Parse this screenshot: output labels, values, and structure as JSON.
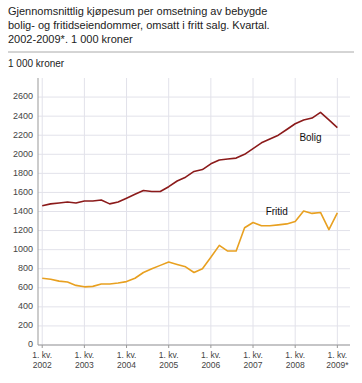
{
  "chart_data": {
    "type": "line",
    "title": "Gjennomsnittlig kjøpesum per omsetning av bebygde\nbolig- og fritidseiendommer, omsatt i fritt salg. Kvartal.\n2002-2009*. 1 000 kroner",
    "y_label": "1 000 kroner",
    "categories": [
      "1. kv.\n2002",
      null,
      null,
      null,
      null,
      "1. kv.\n2003",
      null,
      null,
      null,
      null,
      "1. kv.\n2004",
      null,
      null,
      null,
      null,
      "1. kv.\n2005",
      null,
      null,
      null,
      null,
      "1. kv.\n2006",
      null,
      null,
      null,
      null,
      "1. kv.\n2007",
      null,
      null,
      null,
      null,
      "1. kv.\n2008",
      null,
      null,
      null,
      null,
      "1. kv.\n2009*"
    ],
    "series": [
      {
        "name": "Bolig",
        "color": "#8B1A1A",
        "values": [
          1460,
          1480,
          1490,
          1500,
          1490,
          1510,
          1510,
          1520,
          1480,
          1500,
          1540,
          1580,
          1620,
          1610,
          1610,
          1660,
          1720,
          1760,
          1820,
          1840,
          1900,
          1940,
          1950,
          1960,
          2000,
          2060,
          2120,
          2160,
          2200,
          2260,
          2320,
          2360,
          2380,
          2440,
          2360,
          2280
        ]
      },
      {
        "name": "Fritid",
        "color": "#E8A020",
        "values": [
          700,
          690,
          670,
          660,
          625,
          610,
          615,
          640,
          640,
          650,
          665,
          700,
          760,
          800,
          835,
          870,
          845,
          820,
          760,
          800,
          920,
          1045,
          985,
          985,
          1230,
          1285,
          1250,
          1250,
          1260,
          1270,
          1295,
          1405,
          1380,
          1390,
          1210,
          1385
        ]
      }
    ],
    "ylim": [
      0,
      2800
    ],
    "yticks": [
      0,
      200,
      400,
      600,
      800,
      1000,
      1200,
      1400,
      1600,
      1800,
      2000,
      2200,
      2400,
      2600
    ],
    "grid": true
  }
}
